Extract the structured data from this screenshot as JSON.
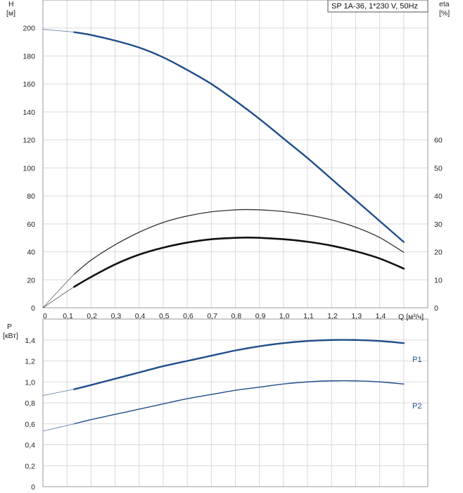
{
  "chart_data": [
    {
      "type": "line",
      "title": "SP 1A-36, 1*230 V, 50Hz",
      "ylabel": "H",
      "yunit": "[м]",
      "y2label": "eta",
      "y2unit": "[%]",
      "xlabel": "Q [м³/ч]",
      "xlim": [
        0,
        1.6
      ],
      "ylim": [
        0,
        220
      ],
      "y2lim": [
        0,
        110
      ],
      "grid": true,
      "x_ticks": [
        "0",
        "0,1",
        "0,2",
        "0,3",
        "0,4",
        "0,5",
        "0,6",
        "0,7",
        "0,8",
        "0,9",
        "1,0",
        "1,1",
        "1,2",
        "1,3",
        "1,4"
      ],
      "y_ticks": [
        "0",
        "20",
        "40",
        "60",
        "80",
        "100",
        "120",
        "140",
        "160",
        "180",
        "200"
      ],
      "y2_ticks": [
        "0",
        "10",
        "20",
        "30",
        "40",
        "50",
        "60"
      ],
      "series": [
        {
          "axis": "left",
          "color": "#1f4e8a",
          "x": [
            0,
            0.13,
            0.2,
            0.3,
            0.4,
            0.5,
            0.6,
            0.7,
            0.8,
            0.9,
            1.0,
            1.1,
            1.2,
            1.3,
            1.4,
            1.5
          ],
          "y": [
            199,
            197,
            195,
            191,
            186,
            179,
            170,
            160,
            148,
            135,
            121,
            107,
            92,
            77,
            62,
            47
          ]
        },
        {
          "axis": "right",
          "color": "#333333",
          "x": [
            0,
            0.13,
            0.2,
            0.3,
            0.4,
            0.5,
            0.6,
            0.7,
            0.8,
            0.84,
            0.9,
            1.0,
            1.1,
            1.2,
            1.3,
            1.4,
            1.5
          ],
          "y": [
            0,
            12,
            17,
            22.5,
            27,
            30.5,
            32.8,
            34.3,
            35,
            35.1,
            35,
            34.4,
            33.2,
            31.4,
            28.8,
            25.1,
            19.8
          ]
        },
        {
          "axis": "right",
          "color": "#111111",
          "x": [
            0,
            0.13,
            0.2,
            0.3,
            0.4,
            0.5,
            0.6,
            0.7,
            0.8,
            0.85,
            0.9,
            1.0,
            1.1,
            1.2,
            1.3,
            1.4,
            1.5
          ],
          "y": [
            0,
            7.5,
            11,
            15.5,
            19,
            21.5,
            23.3,
            24.5,
            25,
            25.1,
            25,
            24.5,
            23.6,
            22.2,
            20.2,
            17.6,
            14
          ]
        }
      ]
    },
    {
      "type": "line",
      "ylabel": "P",
      "yunit": "[кВт]",
      "xlim": [
        0,
        1.6
      ],
      "ylim": [
        0,
        1.6
      ],
      "grid": true,
      "y_ticks": [
        "0",
        "0,2",
        "0,4",
        "0,6",
        "0,8",
        "1,0",
        "1,2",
        "1,4"
      ],
      "series": [
        {
          "name": "P1",
          "axis": "left",
          "color": "#1f4e8a",
          "x": [
            0,
            0.13,
            0.2,
            0.3,
            0.4,
            0.5,
            0.6,
            0.7,
            0.8,
            0.9,
            1.0,
            1.1,
            1.2,
            1.3,
            1.4,
            1.5
          ],
          "y": [
            0.87,
            0.93,
            0.97,
            1.03,
            1.09,
            1.15,
            1.2,
            1.25,
            1.3,
            1.34,
            1.37,
            1.39,
            1.4,
            1.4,
            1.39,
            1.37
          ]
        },
        {
          "name": "P2",
          "axis": "left",
          "color": "#1f4e8a",
          "x": [
            0,
            0.13,
            0.2,
            0.3,
            0.4,
            0.5,
            0.6,
            0.7,
            0.8,
            0.9,
            1.0,
            1.1,
            1.2,
            1.3,
            1.4,
            1.5
          ],
          "y": [
            0.53,
            0.6,
            0.64,
            0.69,
            0.74,
            0.79,
            0.84,
            0.88,
            0.92,
            0.95,
            0.98,
            1.0,
            1.01,
            1.01,
            1.0,
            0.98
          ]
        }
      ]
    }
  ]
}
